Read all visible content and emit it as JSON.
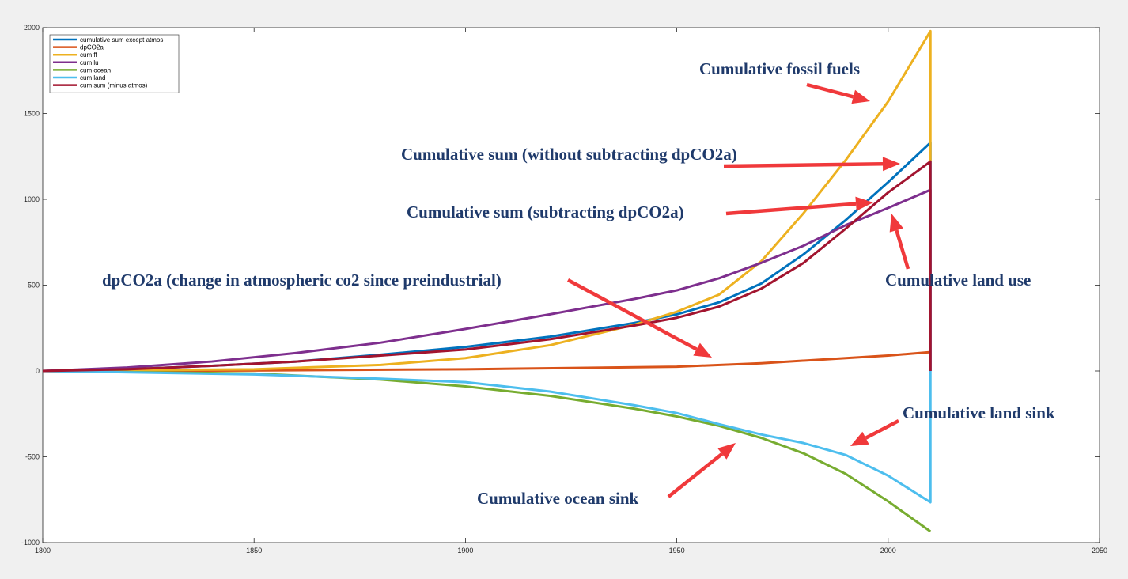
{
  "chart_data": {
    "type": "line",
    "title": "",
    "xlabel": "",
    "ylabel": "",
    "xlim": [
      1800,
      2050
    ],
    "ylim": [
      -1000,
      2000
    ],
    "xticks": [
      1800,
      1850,
      1900,
      1950,
      2000,
      2050
    ],
    "yticks": [
      -1000,
      -500,
      0,
      500,
      1000,
      1500,
      2000
    ],
    "grid": false,
    "legend_position": "top-left",
    "series": [
      {
        "name": "cumulative sum except atmos",
        "color": "#0072bd",
        "x": [
          1800,
          1820,
          1840,
          1860,
          1880,
          1900,
          1920,
          1940,
          1950,
          1960,
          1970,
          1980,
          1990,
          2000,
          2010
        ],
        "y": [
          0,
          10,
          30,
          55,
          95,
          140,
          200,
          280,
          330,
          400,
          510,
          680,
          880,
          1100,
          1330
        ]
      },
      {
        "name": "dpCO2a",
        "color": "#d95319",
        "x": [
          1800,
          1850,
          1900,
          1950,
          1970,
          1990,
          2000,
          2010
        ],
        "y": [
          0,
          3,
          10,
          25,
          45,
          75,
          90,
          110
        ]
      },
      {
        "name": "cum ff",
        "color": "#edb120",
        "x": [
          1800,
          1850,
          1880,
          1900,
          1920,
          1940,
          1950,
          1960,
          1970,
          1980,
          1990,
          2000,
          2010
        ],
        "y": [
          0,
          10,
          35,
          75,
          150,
          270,
          345,
          445,
          640,
          920,
          1230,
          1570,
          1980
        ]
      },
      {
        "name": "cum lu",
        "color": "#7e2f8e",
        "x": [
          1800,
          1820,
          1840,
          1860,
          1880,
          1900,
          1920,
          1940,
          1950,
          1960,
          1970,
          1980,
          1990,
          2000,
          2010
        ],
        "y": [
          0,
          20,
          55,
          105,
          165,
          245,
          330,
          420,
          470,
          540,
          630,
          730,
          850,
          950,
          1055
        ]
      },
      {
        "name": "cum ocean",
        "color": "#77ac30",
        "x": [
          1800,
          1850,
          1880,
          1900,
          1920,
          1940,
          1950,
          1960,
          1970,
          1980,
          1990,
          2000,
          2010
        ],
        "y": [
          0,
          -15,
          -50,
          -90,
          -145,
          -220,
          -265,
          -320,
          -390,
          -480,
          -600,
          -760,
          -935
        ]
      },
      {
        "name": "cum land",
        "color": "#4dbeee",
        "x": [
          1800,
          1850,
          1880,
          1900,
          1920,
          1940,
          1950,
          1960,
          1970,
          1980,
          1990,
          2000,
          2010
        ],
        "y": [
          0,
          -20,
          -45,
          -65,
          -120,
          -200,
          -245,
          -310,
          -370,
          -420,
          -490,
          -610,
          -765
        ]
      },
      {
        "name": "cum sum (minus atmos)",
        "color": "#a2142f",
        "x": [
          1800,
          1820,
          1840,
          1860,
          1880,
          1900,
          1920,
          1940,
          1950,
          1960,
          1970,
          1980,
          1990,
          2000,
          2010
        ],
        "y": [
          0,
          10,
          30,
          55,
          90,
          125,
          185,
          265,
          310,
          375,
          480,
          630,
          830,
          1040,
          1220
        ]
      }
    ],
    "annotations": [
      {
        "text": "Cumulative fossil fuels"
      },
      {
        "text": "Cumulative sum (without subtracting dpCO2a)"
      },
      {
        "text": "Cumulative sum (subtracting dpCO2a)"
      },
      {
        "text": "dpCO2a (change in atmospheric co2 since preindustrial)"
      },
      {
        "text": "Cumulative land use"
      },
      {
        "text": "Cumulative land sink"
      },
      {
        "text": "Cumulative ocean sink"
      }
    ]
  }
}
